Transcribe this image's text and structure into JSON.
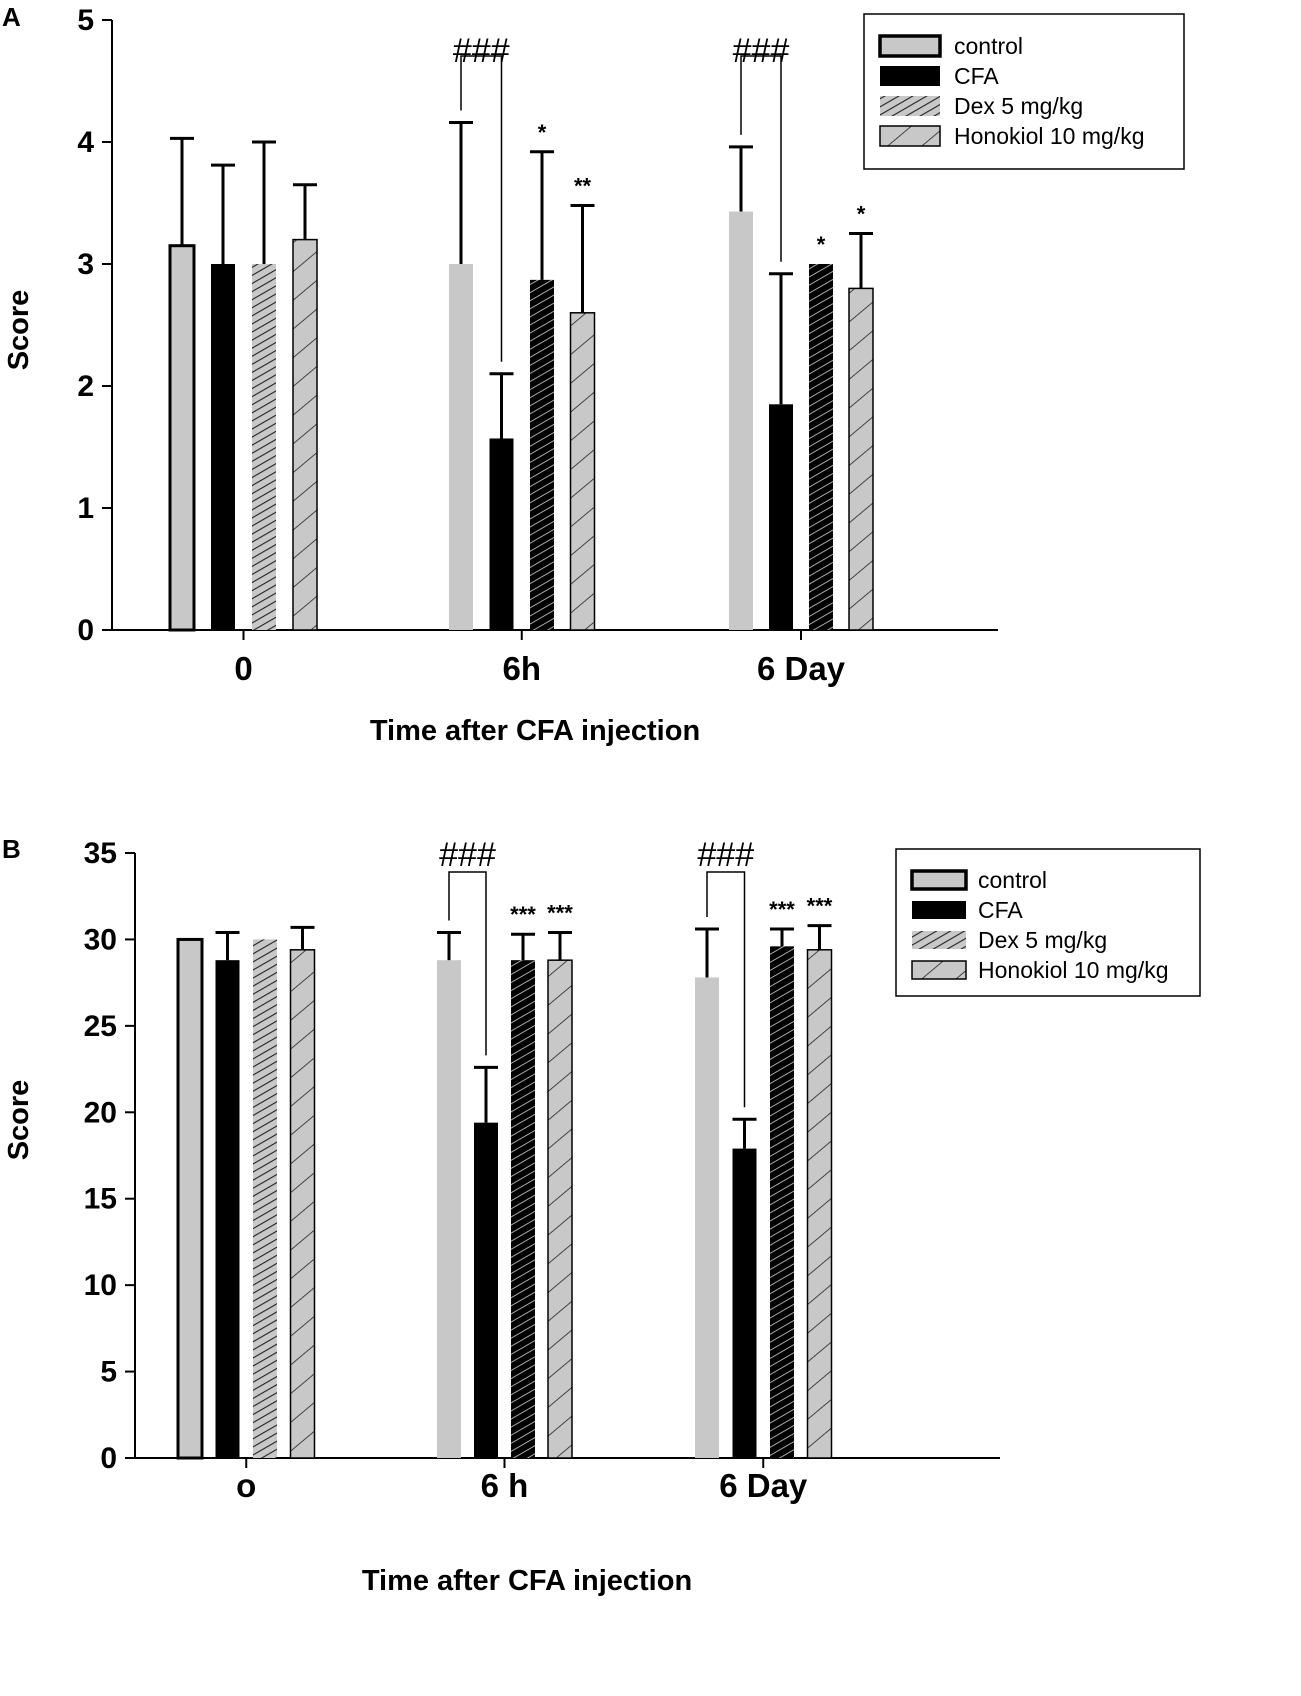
{
  "colors": {
    "control": "#c8c8c8",
    "cfa": "#000000",
    "dex_bg": "#c8c8c8",
    "dex_bg_dark": "#000000",
    "honokiol_bg": "#c8c8c8",
    "axis": "#000000"
  },
  "chart_data": [
    {
      "panel_label": "A",
      "type": "bar",
      "xlabel": "Time after CFA injection",
      "ylabel": "Score",
      "ylim": [
        0,
        5
      ],
      "yticks": [
        "0",
        "1",
        "2",
        "3",
        "4",
        "5"
      ],
      "categories": [
        "0",
        "6h",
        "6 Day"
      ],
      "legend": [
        "control",
        "CFA",
        "Dex 5 mg/kg",
        "Honokiol 10 mg/kg"
      ],
      "series": [
        {
          "name": "control",
          "values": [
            3.15,
            3.0,
            3.43
          ],
          "errors": [
            0.88,
            1.16,
            0.53
          ]
        },
        {
          "name": "CFA",
          "values": [
            3.0,
            1.57,
            1.85
          ],
          "errors": [
            0.81,
            0.53,
            1.07
          ]
        },
        {
          "name": "Dex 5 mg/kg",
          "values": [
            3.0,
            2.87,
            3.0
          ],
          "errors": [
            1.0,
            1.05,
            0.0
          ]
        },
        {
          "name": "Honokiol 10 mg/kg",
          "values": [
            3.2,
            2.6,
            2.8
          ],
          "errors": [
            0.45,
            0.88,
            0.45
          ]
        }
      ],
      "significance": [
        {
          "category": 1,
          "series": 2,
          "label": "*"
        },
        {
          "category": 1,
          "series": 3,
          "label": "**"
        },
        {
          "category": 2,
          "series": 2,
          "label": "*"
        },
        {
          "category": 2,
          "series": 3,
          "label": "*"
        }
      ],
      "brackets": [
        {
          "category": 1,
          "label": "###"
        },
        {
          "category": 2,
          "label": "###"
        }
      ]
    },
    {
      "panel_label": "B",
      "type": "bar",
      "xlabel": "Time after CFA injection",
      "ylabel": "Score",
      "ylim": [
        0,
        35
      ],
      "yticks": [
        "0",
        "5",
        "10",
        "15",
        "20",
        "25",
        "30",
        "35"
      ],
      "categories": [
        "o",
        "6 h",
        "6 Day"
      ],
      "legend": [
        "control",
        "CFA",
        "Dex 5 mg/kg",
        "Honokiol 10 mg/kg"
      ],
      "series": [
        {
          "name": "control",
          "values": [
            30.0,
            28.8,
            27.8
          ],
          "errors": [
            0.0,
            1.6,
            2.8
          ]
        },
        {
          "name": "CFA",
          "values": [
            28.8,
            19.4,
            17.9
          ],
          "errors": [
            1.6,
            3.2,
            1.7
          ]
        },
        {
          "name": "Dex 5 mg/kg",
          "values": [
            30.0,
            28.8,
            29.6
          ],
          "errors": [
            0.0,
            1.5,
            1.0
          ]
        },
        {
          "name": "Honokiol 10 mg/kg",
          "values": [
            29.4,
            28.8,
            29.4
          ],
          "errors": [
            1.3,
            1.6,
            1.4
          ]
        }
      ],
      "significance": [
        {
          "category": 1,
          "series": 2,
          "label": "***"
        },
        {
          "category": 1,
          "series": 3,
          "label": "***"
        },
        {
          "category": 2,
          "series": 2,
          "label": "***"
        },
        {
          "category": 2,
          "series": 3,
          "label": "***"
        }
      ],
      "brackets": [
        {
          "category": 1,
          "label": "###"
        },
        {
          "category": 2,
          "label": "###"
        }
      ]
    }
  ]
}
